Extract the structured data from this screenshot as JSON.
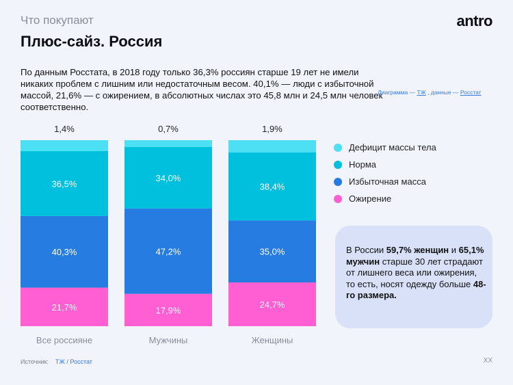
{
  "header": {
    "eyebrow": "Что покупают",
    "title": "Плюс-сайз. Россия",
    "logo": "antro"
  },
  "lead": "По данным Росстата, в 2018 году только 36,3% россиян старше 19 лет не имели никаких проблем с лишним или недостаточным весом. 40,1% — люди с избыточной массой, 21,6% — с ожирением, в абсолютных числах это 45,8 млн и 24,5 млн человек соответственно.",
  "credit": {
    "prefix1": "Диаграмма — ",
    "link1": "ТЖ",
    "prefix2": " , данные — ",
    "link2": "Росстат"
  },
  "chart_data": {
    "type": "bar",
    "stacked": true,
    "categories": [
      "Все россияне",
      "Мужчины",
      "Женщины"
    ],
    "series": [
      {
        "name": "Ожирение",
        "color": "#ff5fd2",
        "values": [
          21.7,
          17.9,
          24.7
        ],
        "labels": [
          "21,7%",
          "17,9%",
          "24,7%"
        ]
      },
      {
        "name": "Избыточная масса",
        "color": "#267ce1",
        "values": [
          40.3,
          47.2,
          35.0
        ],
        "labels": [
          "40,3%",
          "47,2%",
          "35,0%"
        ]
      },
      {
        "name": "Норма",
        "color": "#00c0dd",
        "values": [
          36.5,
          34.0,
          38.4
        ],
        "labels": [
          "36,5%",
          "34,0%",
          "38,4%"
        ]
      },
      {
        "name": "Дефицит массы тела",
        "color": "#4ddff3",
        "values": [
          1.4,
          0.7,
          1.9
        ],
        "labels": [
          "1,4%",
          "0,7%",
          "1,9%"
        ]
      }
    ],
    "legend_order": [
      "Дефицит массы тела",
      "Норма",
      "Избыточная масса",
      "Ожирение"
    ],
    "legend_position": "right",
    "grid": false
  },
  "callout": {
    "t1": "В России ",
    "b1": "59,7% женщин",
    "t2": " и ",
    "b2": "65,1% мужчин",
    "t3": " старше 30 лет страдают от лишнего веса или ожирения, то есть, носят одежду больше ",
    "b3": "48-го размера."
  },
  "footer": {
    "source_label": "Источник:",
    "source_links": "ТЖ / Росстат",
    "page": "XX"
  }
}
